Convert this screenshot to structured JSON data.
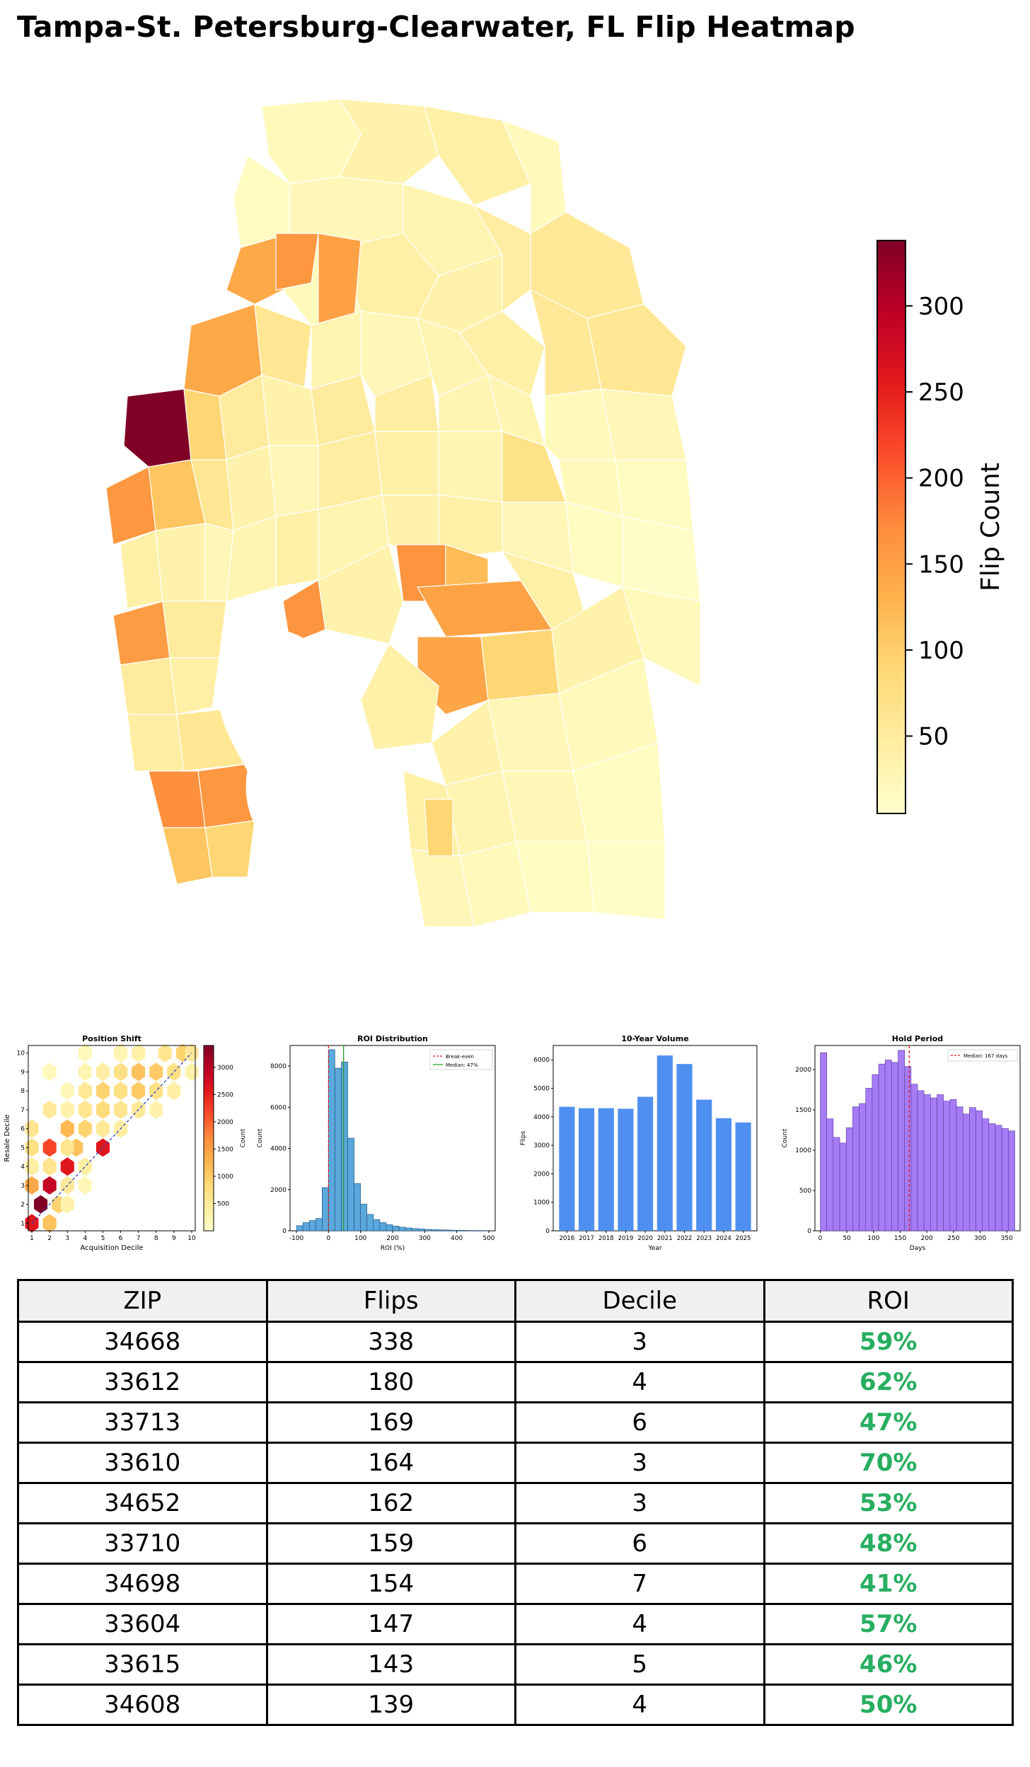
{
  "title": "Tampa-St. Petersburg-Clearwater, FL Flip Heatmap",
  "map": {
    "colorbar": {
      "label": "Flip Count",
      "ticks": [
        50,
        100,
        150,
        200,
        250,
        300
      ],
      "min": 5,
      "max": 338,
      "colors": [
        "#ffffcc",
        "#ffeda0",
        "#fed976",
        "#feb24c",
        "#fd8d3c",
        "#fc4e2a",
        "#e31a1c",
        "#bd0026",
        "#800026"
      ]
    }
  },
  "chart_data": [
    {
      "type": "heatmap",
      "subtype": "hexbin",
      "title": "Position Shift",
      "xlabel": "Acquisition Decile",
      "ylabel": "Resale Decile",
      "xlim": [
        1,
        10
      ],
      "ylim": [
        1,
        10
      ],
      "x_ticks": [
        "1",
        "2",
        "3",
        "4",
        "5",
        "6",
        "7",
        "8",
        "9",
        "10"
      ],
      "y_ticks": [
        "1",
        "2",
        "3",
        "4",
        "5",
        "6",
        "7",
        "8",
        "9",
        "10"
      ],
      "colorbar_label": "Count",
      "colorbar_ticks": [
        500,
        1000,
        1500,
        2000,
        2500,
        3000
      ],
      "colorbar_range": [
        0,
        3400
      ],
      "cells": [
        {
          "x": 1,
          "y": 1,
          "count": 2600
        },
        {
          "x": 1.5,
          "y": 2,
          "count": 3400
        },
        {
          "x": 2,
          "y": 1,
          "count": 1100
        },
        {
          "x": 2,
          "y": 3,
          "count": 2900
        },
        {
          "x": 1,
          "y": 3,
          "count": 1400
        },
        {
          "x": 2.5,
          "y": 2,
          "count": 900
        },
        {
          "x": 3,
          "y": 4,
          "count": 2600
        },
        {
          "x": 2,
          "y": 5,
          "count": 2200
        },
        {
          "x": 3.5,
          "y": 5,
          "count": 1100
        },
        {
          "x": 1,
          "y": 5,
          "count": 700
        },
        {
          "x": 5,
          "y": 5,
          "count": 2600
        },
        {
          "x": 4,
          "y": 6,
          "count": 900
        },
        {
          "x": 3,
          "y": 6,
          "count": 1200
        },
        {
          "x": 1,
          "y": 6,
          "count": 600
        },
        {
          "x": 2,
          "y": 7,
          "count": 500
        },
        {
          "x": 3,
          "y": 7,
          "count": 300
        },
        {
          "x": 5,
          "y": 7,
          "count": 800
        },
        {
          "x": 6,
          "y": 7,
          "count": 600
        },
        {
          "x": 4,
          "y": 8,
          "count": 500
        },
        {
          "x": 5,
          "y": 8,
          "count": 900
        },
        {
          "x": 6,
          "y": 8,
          "count": 700
        },
        {
          "x": 7,
          "y": 8,
          "count": 1000
        },
        {
          "x": 8,
          "y": 8,
          "count": 700
        },
        {
          "x": 6,
          "y": 9,
          "count": 700
        },
        {
          "x": 7,
          "y": 9,
          "count": 1100
        },
        {
          "x": 8,
          "y": 9,
          "count": 1000
        },
        {
          "x": 9,
          "y": 9,
          "count": 700
        },
        {
          "x": 8.5,
          "y": 10,
          "count": 600
        },
        {
          "x": 9.5,
          "y": 10,
          "count": 900
        },
        {
          "x": 10,
          "y": 10,
          "count": 500
        },
        {
          "x": 3,
          "y": 8,
          "count": 200
        },
        {
          "x": 2,
          "y": 9,
          "count": 150
        },
        {
          "x": 4,
          "y": 9,
          "count": 250
        },
        {
          "x": 4,
          "y": 10,
          "count": 150
        },
        {
          "x": 6,
          "y": 10,
          "count": 250
        },
        {
          "x": 7,
          "y": 10,
          "count": 350
        },
        {
          "x": 6,
          "y": 6,
          "count": 400
        },
        {
          "x": 7,
          "y": 7,
          "count": 500
        },
        {
          "x": 8,
          "y": 7,
          "count": 300
        },
        {
          "x": 4,
          "y": 7,
          "count": 600
        },
        {
          "x": 5,
          "y": 6,
          "count": 500
        },
        {
          "x": 3,
          "y": 5,
          "count": 600
        },
        {
          "x": 4,
          "y": 4,
          "count": 400
        },
        {
          "x": 2,
          "y": 4,
          "count": 600
        },
        {
          "x": 1,
          "y": 4,
          "count": 400
        },
        {
          "x": 3,
          "y": 3,
          "count": 500
        },
        {
          "x": 3,
          "y": 2,
          "count": 300
        },
        {
          "x": 4,
          "y": 3,
          "count": 200
        },
        {
          "x": 9,
          "y": 8,
          "count": 400
        },
        {
          "x": 10,
          "y": 9,
          "count": 300
        },
        {
          "x": 5,
          "y": 9,
          "count": 400
        }
      ]
    },
    {
      "type": "bar",
      "subtype": "histogram",
      "title": "ROI Distribution",
      "xlabel": "ROI (%)",
      "ylabel": "Count",
      "xlim": [
        -120,
        520
      ],
      "ylim": [
        0,
        9000
      ],
      "x_ticks": [
        -100,
        0,
        100,
        200,
        300,
        400,
        500
      ],
      "y_ticks": [
        0,
        2000,
        4000,
        6000,
        8000
      ],
      "bin_width": 20,
      "bin_starts": [
        -100,
        -80,
        -60,
        -40,
        -20,
        0,
        20,
        40,
        60,
        80,
        100,
        120,
        140,
        160,
        180,
        200,
        220,
        240,
        260,
        280,
        300,
        320,
        340,
        360,
        380,
        400,
        420,
        440,
        460,
        480
      ],
      "values": [
        250,
        400,
        500,
        600,
        2100,
        8800,
        7900,
        8200,
        4500,
        2300,
        1300,
        800,
        550,
        400,
        300,
        230,
        180,
        140,
        110,
        90,
        70,
        60,
        50,
        40,
        30,
        25,
        20,
        15,
        15,
        10
      ],
      "lines": [
        {
          "label": "Break-even",
          "x": 0,
          "color": "#e41a1c",
          "style": "dashed"
        },
        {
          "label": "Median: 47%",
          "x": 47,
          "color": "#2ca02c",
          "style": "solid"
        }
      ]
    },
    {
      "type": "bar",
      "title": "10-Year Volume",
      "xlabel": "Year",
      "ylabel": "Flips",
      "categories": [
        "2016",
        "2017",
        "2018",
        "2019",
        "2020",
        "2021",
        "2022",
        "2023",
        "2024",
        "2025"
      ],
      "values": [
        4350,
        4300,
        4300,
        4280,
        4700,
        6150,
        5850,
        4600,
        3950,
        3800
      ],
      "ylim": [
        0,
        6500
      ],
      "y_ticks": [
        0,
        1000,
        2000,
        3000,
        4000,
        5000,
        6000
      ]
    },
    {
      "type": "bar",
      "subtype": "histogram",
      "title": "Hold Period",
      "xlabel": "Days",
      "ylabel": "Count",
      "xlim": [
        -10,
        375
      ],
      "ylim": [
        0,
        2300
      ],
      "x_ticks": [
        0,
        50,
        100,
        150,
        200,
        250,
        300,
        350
      ],
      "y_ticks": [
        0,
        500,
        1000,
        1500,
        2000
      ],
      "bin_width": 12.17,
      "values": [
        2210,
        1390,
        1160,
        1090,
        1280,
        1540,
        1580,
        1770,
        1940,
        2070,
        2120,
        2090,
        2240,
        2040,
        1820,
        1740,
        1690,
        1650,
        1690,
        1610,
        1630,
        1540,
        1450,
        1530,
        1490,
        1390,
        1330,
        1310,
        1270,
        1240
      ],
      "lines": [
        {
          "label": "Median: 167 days",
          "x": 167,
          "color": "#e41a1c",
          "style": "dashed"
        }
      ]
    }
  ],
  "table": {
    "headers": [
      "ZIP",
      "Flips",
      "Decile",
      "ROI"
    ],
    "roi_color": "#27ae60",
    "rows": [
      {
        "zip": "34668",
        "flips": "338",
        "decile": "3",
        "roi": "59%"
      },
      {
        "zip": "33612",
        "flips": "180",
        "decile": "4",
        "roi": "62%"
      },
      {
        "zip": "33713",
        "flips": "169",
        "decile": "6",
        "roi": "47%"
      },
      {
        "zip": "33610",
        "flips": "164",
        "decile": "3",
        "roi": "70%"
      },
      {
        "zip": "34652",
        "flips": "162",
        "decile": "3",
        "roi": "53%"
      },
      {
        "zip": "33710",
        "flips": "159",
        "decile": "6",
        "roi": "48%"
      },
      {
        "zip": "34698",
        "flips": "154",
        "decile": "7",
        "roi": "41%"
      },
      {
        "zip": "33604",
        "flips": "147",
        "decile": "4",
        "roi": "57%"
      },
      {
        "zip": "33615",
        "flips": "143",
        "decile": "5",
        "roi": "46%"
      },
      {
        "zip": "34608",
        "flips": "139",
        "decile": "4",
        "roi": "50%"
      }
    ]
  }
}
